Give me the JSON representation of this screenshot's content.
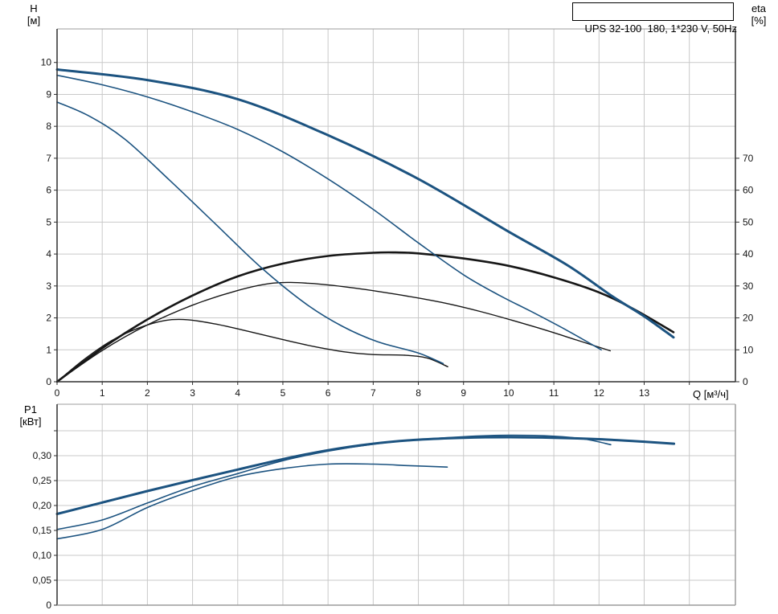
{
  "colors": {
    "curve_blue": "#1c5380",
    "curve_black": "#161616",
    "grid": "#c9c9c9",
    "frame_dark": "#2e2e2e",
    "frame_light": "#9c9c9c",
    "text": "#141414",
    "background": "#ffffff"
  },
  "chart_data": [
    {
      "name": "hq-eta-chart",
      "type": "line",
      "title": "UPS 32-100  180, 1*230 V, 50Hz",
      "x_axis": {
        "label": "Q [м³/ч]",
        "min": 0,
        "max": 15.02,
        "grid": [
          1,
          2,
          3,
          4,
          5,
          6,
          7,
          8,
          9,
          10,
          11,
          12,
          13,
          14
        ],
        "ticks": [
          {
            "v": 0,
            "label": "0"
          },
          {
            "v": 1,
            "label": "1"
          },
          {
            "v": 2,
            "label": "2"
          },
          {
            "v": 3,
            "label": "3"
          },
          {
            "v": 4,
            "label": "4"
          },
          {
            "v": 5,
            "label": "5"
          },
          {
            "v": 6,
            "label": "6"
          },
          {
            "v": 7,
            "label": "7"
          },
          {
            "v": 8,
            "label": "8"
          },
          {
            "v": 9,
            "label": "9"
          },
          {
            "v": 10,
            "label": "10"
          },
          {
            "v": 11,
            "label": "11"
          },
          {
            "v": 12,
            "label": "12"
          },
          {
            "v": 13,
            "label": "13"
          },
          {
            "v": 14,
            "label": ""
          }
        ]
      },
      "y_axis": {
        "name": "H",
        "unit": "[м]",
        "min": 0,
        "max": 11.05,
        "grid": [
          1,
          2,
          3,
          4,
          5,
          6,
          7,
          8,
          9,
          10
        ],
        "ticks": [
          {
            "v": 0,
            "label": "0"
          },
          {
            "v": 1,
            "label": "1"
          },
          {
            "v": 2,
            "label": "2"
          },
          {
            "v": 3,
            "label": "3"
          },
          {
            "v": 4,
            "label": "4"
          },
          {
            "v": 5,
            "label": "5"
          },
          {
            "v": 6,
            "label": "6"
          },
          {
            "v": 7,
            "label": "7"
          },
          {
            "v": 8,
            "label": "8"
          },
          {
            "v": 9,
            "label": "9"
          },
          {
            "v": 10,
            "label": "10"
          }
        ]
      },
      "y2_axis": {
        "name": "eta",
        "unit": "[%]",
        "min": 0,
        "max": 110.5,
        "ticks": [
          {
            "v": 0,
            "label": "0"
          },
          {
            "v": 10,
            "label": "10"
          },
          {
            "v": 20,
            "label": "20"
          },
          {
            "v": 30,
            "label": "30"
          },
          {
            "v": 40,
            "label": "40"
          },
          {
            "v": 50,
            "label": "50"
          },
          {
            "v": 60,
            "label": "60"
          },
          {
            "v": 70,
            "label": "70"
          }
        ]
      },
      "series": [
        {
          "name": "eta-speed1",
          "axis": "y2",
          "color": "black",
          "width": 1.4,
          "points": [
            [
              0,
              0
            ],
            [
              0.6,
              7
            ],
            [
              1.2,
              12.8
            ],
            [
              1.8,
              16.8
            ],
            [
              2.4,
              19.2
            ],
            [
              2.9,
              19.4
            ],
            [
              3.5,
              18.1
            ],
            [
              4.2,
              15.9
            ],
            [
              5,
              13.2
            ],
            [
              5.7,
              11
            ],
            [
              6.4,
              9.3
            ],
            [
              7,
              8.5
            ],
            [
              7.7,
              8.3
            ],
            [
              8.2,
              7.4
            ],
            [
              8.65,
              4.7
            ]
          ]
        },
        {
          "name": "eta-speed2",
          "axis": "y2",
          "color": "black",
          "width": 1.4,
          "points": [
            [
              0,
              0
            ],
            [
              1,
              9.8
            ],
            [
              2,
              17.8
            ],
            [
              3,
              24
            ],
            [
              4,
              28.6
            ],
            [
              4.8,
              30.9
            ],
            [
              5.6,
              30.8
            ],
            [
              6.5,
              29.5
            ],
            [
              7.5,
              27.4
            ],
            [
              8.5,
              24.9
            ],
            [
              9.4,
              21.9
            ],
            [
              10.6,
              17.1
            ],
            [
              11.5,
              13.1
            ],
            [
              12.25,
              9.7
            ]
          ]
        },
        {
          "name": "eta-speed3",
          "axis": "y2",
          "color": "black",
          "width": 2.6,
          "points": [
            [
              0,
              0
            ],
            [
              1,
              10.5
            ],
            [
              2,
              19.5
            ],
            [
              3,
              27
            ],
            [
              4,
              33
            ],
            [
              5,
              37
            ],
            [
              6,
              39.4
            ],
            [
              7,
              40.4
            ],
            [
              7.5,
              40.5
            ],
            [
              8,
              40.2
            ],
            [
              9,
              38.6
            ],
            [
              10,
              36.3
            ],
            [
              11,
              32.7
            ],
            [
              12,
              28
            ],
            [
              12.8,
              22.5
            ],
            [
              13.65,
              15.5
            ]
          ]
        },
        {
          "name": "head-speed1",
          "axis": "y",
          "color": "blue",
          "width": 1.6,
          "points": [
            [
              0,
              8.76
            ],
            [
              0.7,
              8.33
            ],
            [
              1.5,
              7.6
            ],
            [
              2.5,
              6.3
            ],
            [
              3.5,
              4.95
            ],
            [
              4.5,
              3.6
            ],
            [
              5.5,
              2.45
            ],
            [
              6.3,
              1.75
            ],
            [
              7.1,
              1.25
            ],
            [
              8,
              0.9
            ],
            [
              8.55,
              0.57
            ]
          ]
        },
        {
          "name": "head-speed2",
          "axis": "y",
          "color": "blue",
          "width": 1.6,
          "points": [
            [
              0,
              9.6
            ],
            [
              1,
              9.3
            ],
            [
              2,
              8.92
            ],
            [
              3,
              8.45
            ],
            [
              4,
              7.9
            ],
            [
              5,
              7.2
            ],
            [
              6,
              6.35
            ],
            [
              7,
              5.4
            ],
            [
              8,
              4.35
            ],
            [
              9,
              3.35
            ],
            [
              9.8,
              2.7
            ],
            [
              10.5,
              2.2
            ],
            [
              11.3,
              1.6
            ],
            [
              12.05,
              1.0
            ]
          ]
        },
        {
          "name": "head-speed3",
          "axis": "y",
          "color": "blue",
          "width": 3,
          "points": [
            [
              0,
              9.78
            ],
            [
              2,
              9.45
            ],
            [
              4,
              8.85
            ],
            [
              6,
              7.72
            ],
            [
              8,
              6.35
            ],
            [
              10,
              4.7
            ],
            [
              11.3,
              3.65
            ],
            [
              12.3,
              2.67
            ],
            [
              13,
              2.05
            ],
            [
              13.65,
              1.39
            ]
          ]
        }
      ]
    },
    {
      "name": "p1-chart",
      "type": "line",
      "x_axis": {
        "label": "",
        "min": 0,
        "max": 15.02,
        "grid": [
          1,
          2,
          3,
          4,
          5,
          6,
          7,
          8,
          9,
          10,
          11,
          12,
          13,
          14
        ],
        "ticks": []
      },
      "y_axis": {
        "name": "P1",
        "unit": "[кВт]",
        "min": 0,
        "max": 0.4032,
        "grid": [
          0.05,
          0.1,
          0.15,
          0.2,
          0.25,
          0.3,
          0.35
        ],
        "ticks": [
          {
            "v": 0,
            "label": "0"
          },
          {
            "v": 0.05,
            "label": "0,05"
          },
          {
            "v": 0.1,
            "label": "0,10"
          },
          {
            "v": 0.15,
            "label": "0,15"
          },
          {
            "v": 0.2,
            "label": "0,20"
          },
          {
            "v": 0.25,
            "label": "0,25"
          },
          {
            "v": 0.3,
            "label": "0,30"
          },
          {
            "v": 0.35,
            "label": ""
          }
        ]
      },
      "series": [
        {
          "name": "power-speed1",
          "axis": "y",
          "color": "blue",
          "width": 1.6,
          "points": [
            [
              0,
              0.133
            ],
            [
              1,
              0.152
            ],
            [
              2,
              0.196
            ],
            [
              3,
              0.23
            ],
            [
              4,
              0.258
            ],
            [
              5,
              0.274
            ],
            [
              6,
              0.283
            ],
            [
              7,
              0.283
            ],
            [
              7.8,
              0.28
            ],
            [
              8.64,
              0.277
            ]
          ]
        },
        {
          "name": "power-speed2",
          "axis": "y",
          "color": "blue",
          "width": 1.6,
          "points": [
            [
              0,
              0.152
            ],
            [
              1,
              0.171
            ],
            [
              2,
              0.205
            ],
            [
              3,
              0.238
            ],
            [
              4,
              0.264
            ],
            [
              5,
              0.29
            ],
            [
              6,
              0.309
            ],
            [
              7,
              0.323
            ],
            [
              8,
              0.332
            ],
            [
              9,
              0.338
            ],
            [
              10,
              0.341
            ],
            [
              11,
              0.339
            ],
            [
              11.7,
              0.333
            ],
            [
              12.26,
              0.322
            ]
          ]
        },
        {
          "name": "power-speed3",
          "axis": "y",
          "color": "blue",
          "width": 3,
          "points": [
            [
              0,
              0.183
            ],
            [
              1,
              0.206
            ],
            [
              2,
              0.229
            ],
            [
              3,
              0.251
            ],
            [
              4,
              0.272
            ],
            [
              5,
              0.293
            ],
            [
              6,
              0.311
            ],
            [
              7,
              0.324
            ],
            [
              8,
              0.332
            ],
            [
              9,
              0.336
            ],
            [
              10,
              0.337
            ],
            [
              11,
              0.336
            ],
            [
              12,
              0.333
            ],
            [
              13,
              0.328
            ],
            [
              13.66,
              0.324
            ]
          ]
        }
      ]
    }
  ]
}
